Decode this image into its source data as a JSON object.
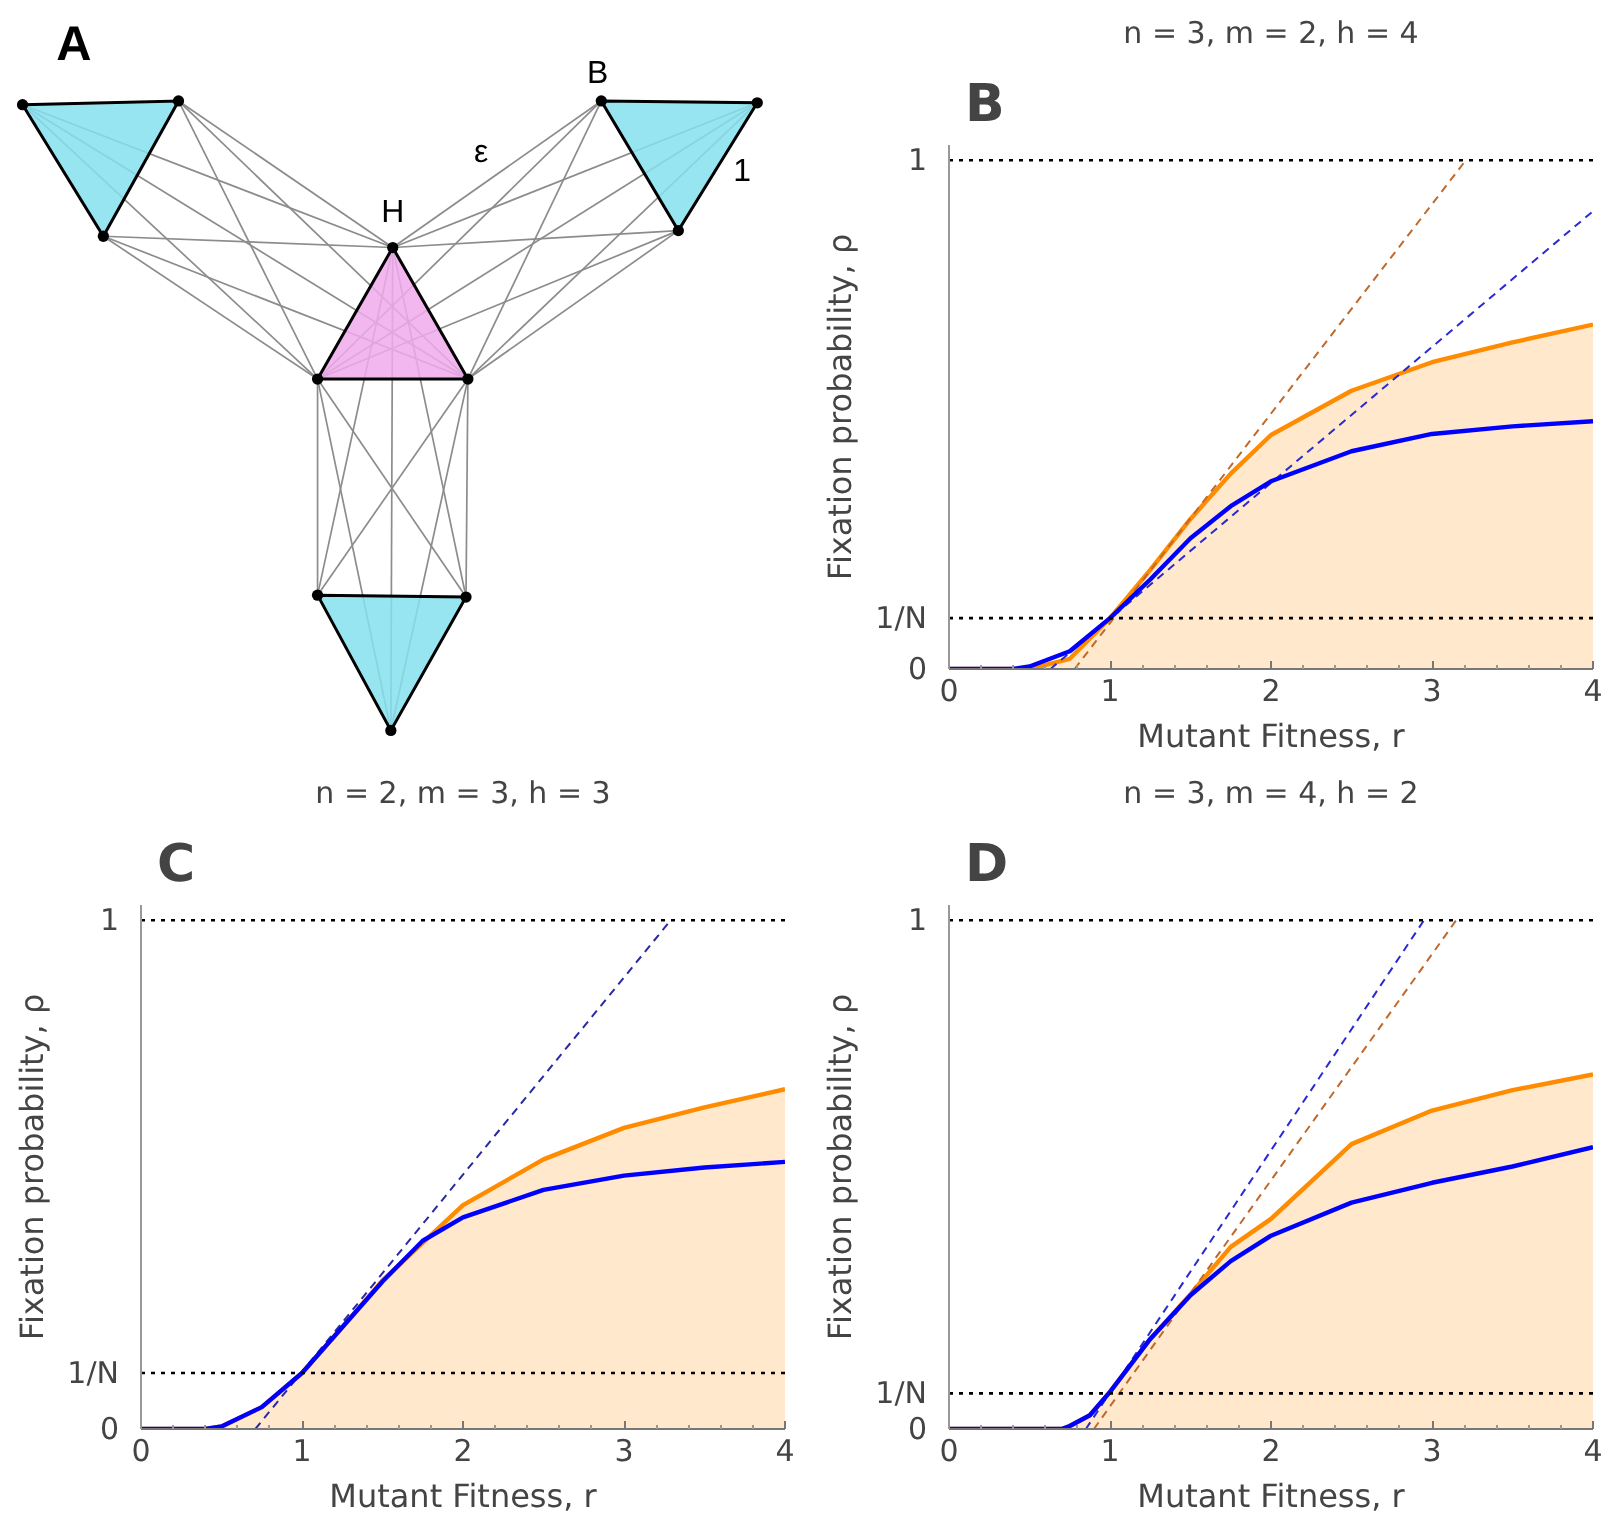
{
  "chart_data": [
    {
      "type": "other",
      "annotations": [
        "A",
        "B",
        "H",
        "ε",
        "1"
      ]
    },
    {
      "type": "line",
      "title": "n = 3, m = 2, h = 4",
      "xlabel": "Mutant Fitness, r",
      "ylabel": "Fixation probability, ρ",
      "annotations": [
        "B"
      ],
      "xlim": [
        0,
        4
      ],
      "ylim": [
        0,
        1
      ],
      "xticks": [
        0,
        1,
        2,
        3,
        4
      ],
      "yticks": [
        0,
        1
      ],
      "ref_lines": [
        {
          "axis": "y",
          "value": 1,
          "color": "#000000",
          "line_style": "dotted"
        },
        {
          "axis": "y",
          "value": 0.1,
          "label": "1/N",
          "color": "#000000",
          "line_style": "dotted"
        }
      ],
      "series": [
        {
          "type": "area",
          "color": "#ff8c00",
          "x": [
            0,
            0.5,
            0.75,
            1,
            1.25,
            1.5,
            1.75,
            2,
            2.5,
            3,
            3.5,
            4
          ],
          "values": [
            0,
            0,
            0.02,
            0.1,
            0.195,
            0.295,
            0.384,
            0.46,
            0.547,
            0.603,
            0.642,
            0.677
          ]
        },
        {
          "type": "line",
          "color": "#c0692a",
          "line_style": "dashed",
          "x": [
            0.78,
            3.21
          ],
          "values": [
            0,
            1
          ]
        },
        {
          "type": "line",
          "color": "#2a2ad0",
          "line_style": "dashed",
          "x": [
            0.63,
            4
          ],
          "values": [
            0,
            0.9
          ]
        },
        {
          "type": "line",
          "color": "#0000ff",
          "x": [
            0,
            0.4,
            0.5,
            0.75,
            1,
            1.25,
            1.5,
            1.75,
            2,
            2.5,
            3,
            3.5,
            4
          ],
          "values": [
            0,
            0,
            0.005,
            0.035,
            0.1,
            0.176,
            0.257,
            0.32,
            0.369,
            0.428,
            0.462,
            0.477,
            0.487
          ]
        }
      ]
    },
    {
      "type": "line",
      "title": "n = 2, m = 3, h = 3",
      "xlabel": "Mutant Fitness, r",
      "ylabel": "Fixation probability, ρ",
      "annotations": [
        "C"
      ],
      "xlim": [
        0,
        4
      ],
      "ylim": [
        0,
        1
      ],
      "xticks": [
        0,
        1,
        2,
        3,
        4
      ],
      "yticks": [
        0,
        1
      ],
      "ref_lines": [
        {
          "axis": "y",
          "value": 1,
          "color": "#000000",
          "line_style": "dotted"
        },
        {
          "axis": "y",
          "value": 0.11,
          "label": "1/N",
          "color": "#000000",
          "line_style": "dotted"
        }
      ],
      "series": [
        {
          "type": "area",
          "color": "#ff8c00",
          "x": [
            0,
            0.4,
            0.5,
            0.75,
            1,
            1.25,
            1.5,
            2,
            2.5,
            3,
            3.5,
            4
          ],
          "values": [
            0,
            0,
            0.005,
            0.043,
            0.11,
            0.2,
            0.292,
            0.44,
            0.53,
            0.592,
            0.632,
            0.668
          ]
        },
        {
          "type": "line",
          "color": "#2a2aa0",
          "line_style": "dashed",
          "x": [
            0.71,
            3.29
          ],
          "values": [
            0,
            1
          ]
        },
        {
          "type": "line",
          "color": "#0000ff",
          "x": [
            0,
            0.4,
            0.5,
            0.75,
            1,
            1.25,
            1.5,
            1.75,
            2,
            2.5,
            3,
            3.5,
            4
          ],
          "values": [
            0,
            0,
            0.005,
            0.043,
            0.11,
            0.2,
            0.29,
            0.37,
            0.416,
            0.47,
            0.498,
            0.514,
            0.525
          ]
        }
      ]
    },
    {
      "type": "line",
      "title": "n = 3, m = 4, h = 2",
      "xlabel": "Mutant Fitness, r",
      "ylabel": "Fixation probability, ρ",
      "annotations": [
        "D"
      ],
      "xlim": [
        0,
        4
      ],
      "ylim": [
        0,
        1
      ],
      "xticks": [
        0,
        1,
        2,
        3,
        4
      ],
      "yticks": [
        0,
        1
      ],
      "ref_lines": [
        {
          "axis": "y",
          "value": 1,
          "color": "#000000",
          "line_style": "dotted"
        },
        {
          "axis": "y",
          "value": 0.07,
          "label": "1/N",
          "color": "#000000",
          "line_style": "dotted"
        }
      ],
      "series": [
        {
          "type": "area",
          "color": "#ff8c00",
          "x": [
            0,
            0.7,
            0.75,
            0.875,
            1,
            1.25,
            1.5,
            1.75,
            2,
            2.5,
            3,
            3.5,
            4
          ],
          "values": [
            0,
            0,
            0.006,
            0.027,
            0.073,
            0.177,
            0.265,
            0.358,
            0.413,
            0.56,
            0.626,
            0.666,
            0.697
          ]
        },
        {
          "type": "line",
          "color": "#2a2ad0",
          "line_style": "dashed",
          "x": [
            0.85,
            2.95
          ],
          "values": [
            0,
            1
          ]
        },
        {
          "type": "line",
          "color": "#c0692a",
          "line_style": "dashed",
          "x": [
            0.9,
            3.15
          ],
          "values": [
            0,
            1
          ]
        },
        {
          "type": "line",
          "color": "#0000ff",
          "x": [
            0,
            0.7,
            0.75,
            0.875,
            1,
            1.25,
            1.5,
            1.75,
            2,
            2.5,
            3,
            3.5,
            4
          ],
          "values": [
            0,
            0,
            0.006,
            0.027,
            0.073,
            0.177,
            0.263,
            0.33,
            0.38,
            0.445,
            0.484,
            0.516,
            0.554
          ]
        }
      ]
    }
  ]
}
